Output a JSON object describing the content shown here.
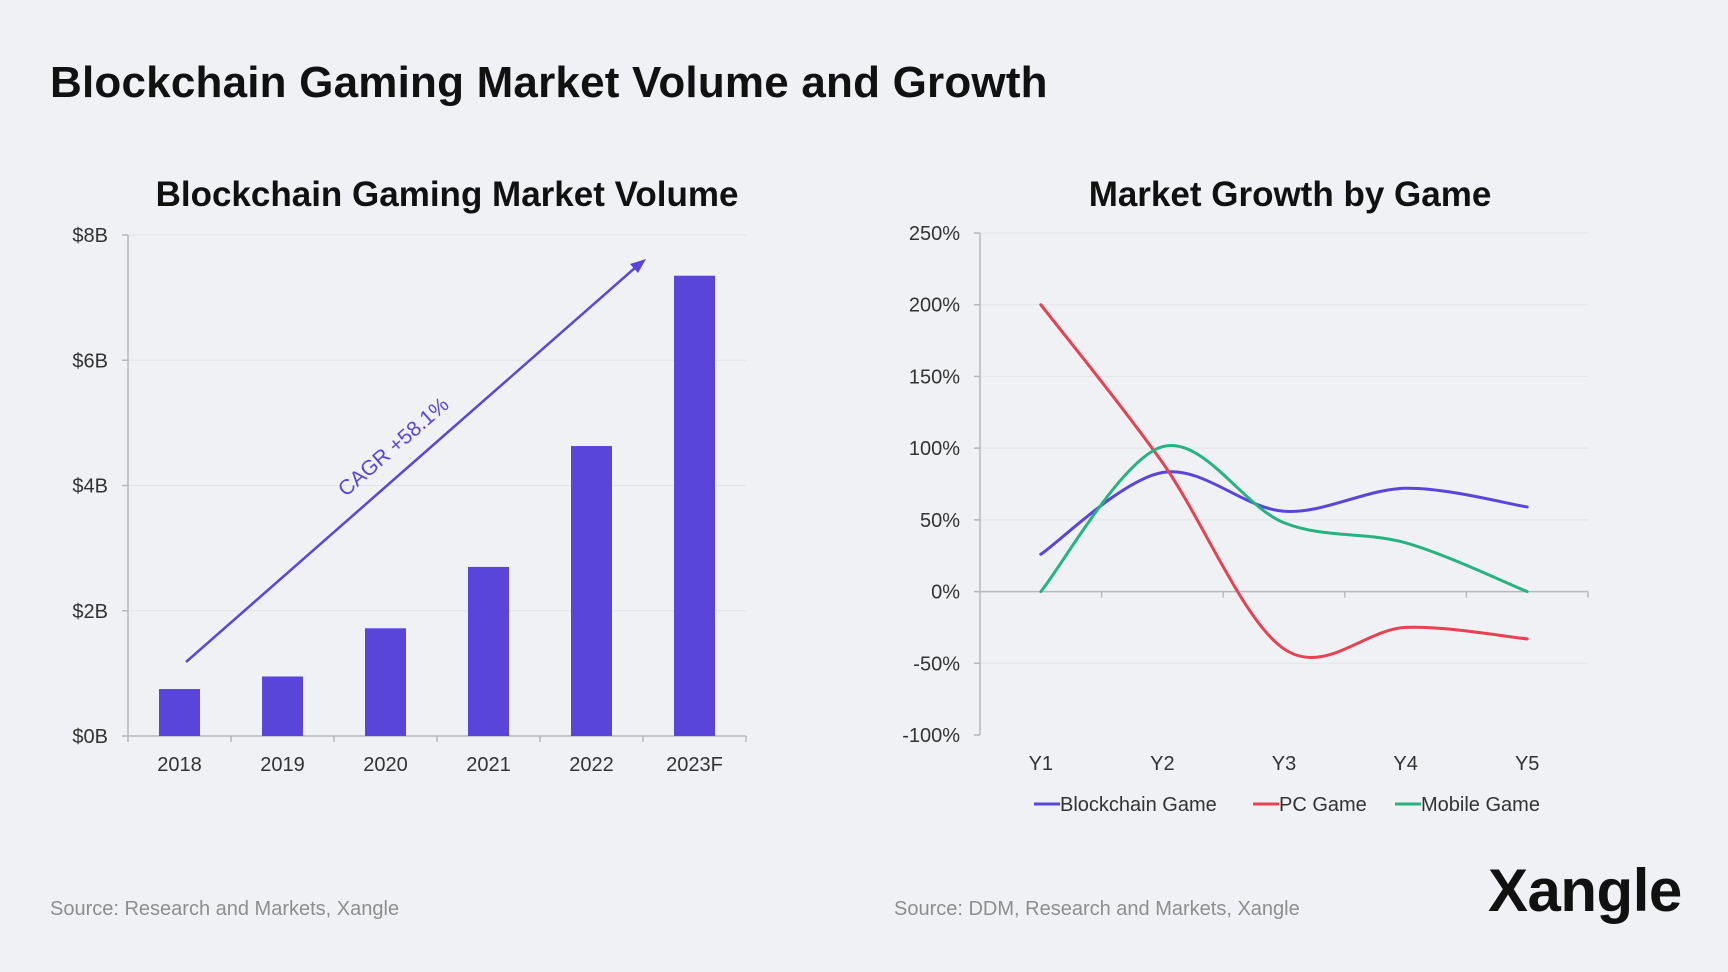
{
  "page": {
    "title": "Blockchain Gaming Market Volume and Growth",
    "source_left": "Source: Research and Markets, Xangle",
    "source_right": "Source: DDM, Research and Markets, Xangle",
    "logo": "Xangle"
  },
  "chart_data": [
    {
      "type": "bar",
      "title": "Blockchain Gaming Market Volume",
      "categories": [
        "2018",
        "2019",
        "2020",
        "2021",
        "2022",
        "2023F"
      ],
      "values": [
        0.75,
        0.95,
        1.72,
        2.7,
        4.63,
        7.35
      ],
      "ylim": [
        0,
        8
      ],
      "yticks": [
        0,
        2,
        4,
        6,
        8
      ],
      "ytick_labels": [
        "$0B",
        "$2B",
        "$4B",
        "$6B",
        "$8B"
      ],
      "annotation": "CAGR +58.1%",
      "bar_color": "#5a45db",
      "grid": true
    },
    {
      "type": "line",
      "title": "Market Growth by Game",
      "categories": [
        "Y1",
        "Y2",
        "Y3",
        "Y4",
        "Y5"
      ],
      "ylim": [
        -100,
        250
      ],
      "yticks": [
        -100,
        -50,
        0,
        50,
        100,
        150,
        200,
        250
      ],
      "ytick_labels": [
        "-100%",
        "-50%",
        "0%",
        "50%",
        "100%",
        "150%",
        "200%",
        "250%"
      ],
      "series": [
        {
          "name": "Blockchain Game",
          "color": "#5a45db",
          "values": [
            26,
            83,
            56,
            72,
            59
          ]
        },
        {
          "name": "PC Game",
          "color": "#e8414f",
          "values": [
            200,
            90,
            -40,
            -25,
            -33
          ]
        },
        {
          "name": "Mobile Game",
          "color": "#26b380",
          "values": [
            0,
            101,
            48,
            34,
            0
          ]
        }
      ],
      "legend_position": "bottom",
      "grid": true
    }
  ]
}
